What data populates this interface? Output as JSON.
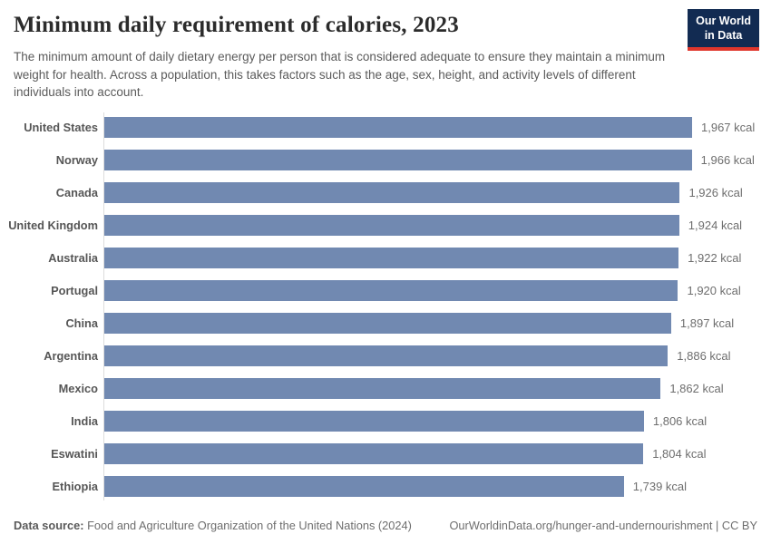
{
  "header": {
    "title": "Minimum daily requirement of calories, 2023",
    "subtitle": "The minimum amount of daily dietary energy per person that is considered adequate to ensure they maintain a minimum weight for health. Across a population, this takes factors such as the age, sex, height, and activity levels of different individuals into account.",
    "logo": {
      "line1": "Our World",
      "line2": "in Data"
    }
  },
  "chart_data": {
    "type": "bar",
    "orientation": "horizontal",
    "title": "Minimum daily requirement of calories, 2023",
    "unit": "kcal",
    "xlabel": "",
    "ylabel": "",
    "xlim": [
      0,
      1967
    ],
    "grid": false,
    "legend": "none",
    "bar_color": "#7189b1",
    "categories": [
      "United States",
      "Norway",
      "Canada",
      "United Kingdom",
      "Australia",
      "Portugal",
      "China",
      "Argentina",
      "Mexico",
      "India",
      "Eswatini",
      "Ethiopia"
    ],
    "values": [
      1967,
      1966,
      1926,
      1924,
      1922,
      1920,
      1897,
      1886,
      1862,
      1806,
      1804,
      1739
    ],
    "value_labels": [
      "1,967 kcal",
      "1,966 kcal",
      "1,926 kcal",
      "1,924 kcal",
      "1,922 kcal",
      "1,920 kcal",
      "1,897 kcal",
      "1,886 kcal",
      "1,862 kcal",
      "1,806 kcal",
      "1,804 kcal",
      "1,739 kcal"
    ]
  },
  "footer": {
    "source_label": "Data source:",
    "source_text": "Food and Agriculture Organization of the United Nations (2024)",
    "link": "OurWorldinData.org/hunger-and-undernourishment",
    "separator": "|",
    "license": "CC BY"
  },
  "colors": {
    "bar": "#7189b1",
    "logo_bg": "#122b52",
    "logo_stripe": "#e0362c",
    "title_text": "#2b2b2b",
    "subtitle_text": "#5b5b5b",
    "axis_line": "#dcdcdc"
  }
}
